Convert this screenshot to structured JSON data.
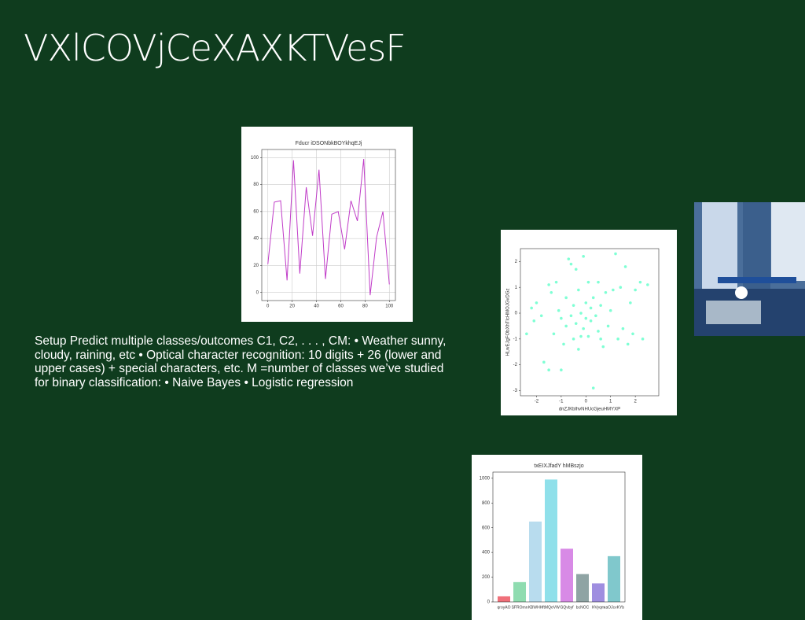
{
  "title": "VXlCOVjCeXAXKTVesF",
  "body": "Setup Predict multiple classes/outcomes C1, C2, . . . , CM: • Weather sunny, cloudy, raining, etc • Optical character recognition: 10 digits + 26 (lower and upper cases) + special characters, etc. M =number of classes we’ve studied for binary classification: • Naive Bayes • Logistic regression",
  "chart_data": [
    {
      "type": "line",
      "title": "Fducr iDSONbkBOYkhqEJj",
      "color": "#c03cc8",
      "grid": true,
      "x": [
        0,
        5.3,
        10.5,
        15.8,
        21.1,
        26.3,
        31.6,
        36.8,
        42.1,
        47.4,
        52.6,
        57.9,
        63.2,
        68.4,
        73.7,
        78.9,
        84.2,
        89.5,
        94.7,
        100
      ],
      "values": [
        21,
        67,
        68,
        9,
        98,
        14,
        78,
        42,
        91,
        10,
        58,
        60,
        32,
        68,
        53,
        99,
        -2,
        41,
        60,
        6
      ],
      "xlim": [
        -5,
        105
      ],
      "xticks": [
        0,
        20,
        40,
        60,
        80,
        100
      ],
      "ylim": [
        -6,
        106
      ],
      "yticks": [
        0,
        20,
        40,
        60,
        80,
        100
      ]
    },
    {
      "type": "scatter",
      "x_label": "dnZJKblhvNHUcGjeuHMYXP",
      "y_label": "HLwEJgFObXhTlcHMOJGvDGz",
      "color": "#7fffd4",
      "x": [
        -2.4,
        -2.2,
        -2.1,
        -2.0,
        -1.8,
        -1.7,
        -1.5,
        -1.5,
        -1.4,
        -1.3,
        -1.2,
        -1.1,
        -1.0,
        -1.0,
        -0.9,
        -0.8,
        -0.8,
        -0.7,
        -0.6,
        -0.6,
        -0.5,
        -0.5,
        -0.4,
        -0.4,
        -0.3,
        -0.3,
        -0.2,
        -0.1,
        -0.1,
        0.0,
        0.0,
        0.1,
        0.1,
        0.2,
        0.2,
        0.3,
        0.3,
        0.4,
        0.5,
        0.5,
        0.6,
        0.7,
        0.8,
        0.9,
        1.0,
        1.1,
        1.2,
        1.3,
        1.4,
        1.5,
        1.6,
        1.7,
        1.8,
        1.9,
        2.0,
        2.2,
        2.3,
        2.5,
        0.6,
        -0.2
      ],
      "values": [
        -0.8,
        0.2,
        -0.3,
        0.4,
        -0.1,
        -1.9,
        -2.2,
        1.1,
        0.8,
        -0.8,
        1.2,
        0.1,
        -0.2,
        -2.2,
        -1.2,
        0.6,
        -0.5,
        2.1,
        1.9,
        -0.1,
        0.3,
        -1.0,
        1.7,
        -0.4,
        0.9,
        -1.4,
        0.0,
        2.2,
        -0.6,
        0.4,
        -0.2,
        1.2,
        -0.9,
        0.2,
        -0.3,
        -2.9,
        0.6,
        -0.1,
        1.2,
        -0.7,
        0.3,
        -1.3,
        0.8,
        -0.5,
        0.1,
        0.9,
        2.3,
        -1.0,
        1.0,
        -0.6,
        1.8,
        -1.2,
        0.4,
        -0.8,
        0.9,
        1.2,
        -1.0,
        1.1,
        -1.0,
        -0.9
      ],
      "xlim": [
        -2.65,
        2.95
      ],
      "xticks": [
        -2,
        -1,
        0,
        1,
        2
      ],
      "ylim": [
        -3.2,
        2.5
      ],
      "yticks": [
        -3,
        -2,
        -1,
        0,
        1,
        2
      ]
    },
    {
      "type": "bar",
      "title": "txEIXJfadY hMBszjo",
      "categories": [
        "qroyAO",
        "SFROmn",
        "KBWHH",
        "ftMQeVW",
        "GQvbyf",
        "bcNOC",
        "HVyqm",
        "xaOJcvKYb"
      ],
      "values": [
        45,
        160,
        650,
        990,
        430,
        225,
        150,
        370
      ],
      "colors": [
        "#f0707a",
        "#8fdcb0",
        "#b8dcee",
        "#8fe0ea",
        "#d88ae6",
        "#8fa4a4",
        "#9f8ee0",
        "#80c8cc"
      ],
      "ylim": [
        0,
        1050
      ],
      "yticks": [
        0,
        200,
        400,
        600,
        800,
        1000
      ]
    }
  ]
}
